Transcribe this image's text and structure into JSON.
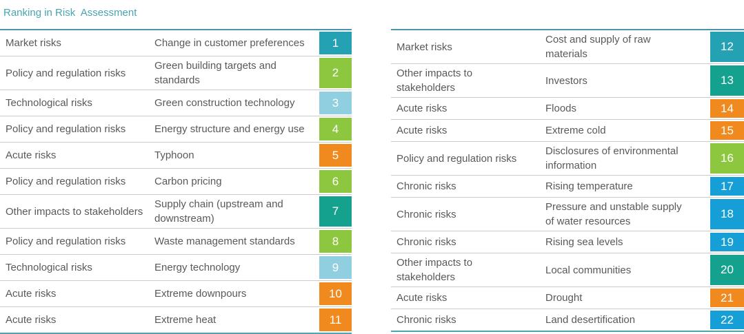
{
  "title": "Ranking in Risk  Assessment",
  "colors": {
    "title": "#46A5B2",
    "table_border": "#4896A8",
    "row_separator": "#CBCBCB",
    "text": "#595959",
    "badge_text": "#FFFFFF"
  },
  "category_colors": {
    "Market risks": "#24A1B2",
    "Policy and regulation risks": "#8DC63F",
    "Technological risks": "#8FCFE0",
    "Acute risks": "#F08A1E",
    "Other impacts to stakeholders": "#14A28E",
    "Chronic risks": "#169FD6"
  },
  "tables": {
    "left": [
      {
        "category": "Market risks",
        "risk": "Change in customer preferences",
        "rank": "1"
      },
      {
        "category": "Policy and regulation risks",
        "risk": "Green building targets and standards",
        "rank": "2"
      },
      {
        "category": "Technological risks",
        "risk": "Green construction technology",
        "rank": "3"
      },
      {
        "category": "Policy and regulation risks",
        "risk": "Energy structure and energy use",
        "rank": "4"
      },
      {
        "category": "Acute risks",
        "risk": "Typhoon",
        "rank": "5"
      },
      {
        "category": "Policy and regulation risks",
        "risk": "Carbon pricing",
        "rank": "6"
      },
      {
        "category": "Other impacts to stakeholders",
        "risk": "Supply chain (upstream and downstream)",
        "rank": "7"
      },
      {
        "category": "Policy and regulation risks",
        "risk": "Waste management standards",
        "rank": "8"
      },
      {
        "category": "Technological risks",
        "risk": "Energy technology",
        "rank": "9"
      },
      {
        "category": "Acute risks",
        "risk": "Extreme downpours",
        "rank": "10"
      },
      {
        "category": "Acute risks",
        "risk": "Extreme heat",
        "rank": "11"
      }
    ],
    "right": [
      {
        "category": "Market risks",
        "risk": "Cost and supply of raw materials",
        "rank": "12"
      },
      {
        "category": "Other impacts to stakeholders",
        "risk": "Investors",
        "rank": "13"
      },
      {
        "category": "Acute risks",
        "risk": "Floods",
        "rank": "14"
      },
      {
        "category": "Acute risks",
        "risk": "Extreme cold",
        "rank": "15"
      },
      {
        "category": "Policy and regulation risks",
        "risk": "Disclosures of environmental information",
        "rank": "16"
      },
      {
        "category": "Chronic risks",
        "risk": "Rising temperature",
        "rank": "17"
      },
      {
        "category": "Chronic risks",
        "risk": "Pressure and unstable supply of water resources",
        "rank": "18"
      },
      {
        "category": "Chronic risks",
        "risk": "Rising sea levels",
        "rank": "19"
      },
      {
        "category": "Other impacts to stakeholders",
        "risk": "Local communities",
        "rank": "20"
      },
      {
        "category": "Acute risks",
        "risk": "Drought",
        "rank": "21"
      },
      {
        "category": "Chronic risks",
        "risk": "Land desertification",
        "rank": "22"
      }
    ]
  }
}
